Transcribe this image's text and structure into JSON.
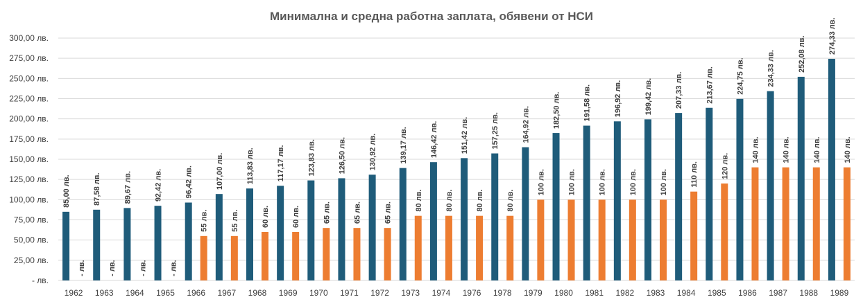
{
  "chart_data": {
    "type": "bar",
    "title": "Минимална и средна работна заплата, обявени от НСИ",
    "xlabel": "",
    "ylabel": "",
    "ylim": [
      0,
      300
    ],
    "y_ticks": [
      0,
      25,
      50,
      75,
      100,
      125,
      150,
      175,
      200,
      225,
      250,
      275,
      300
    ],
    "y_tick_labels": [
      "-  лв.",
      "25,00 лв.",
      "50,00 лв.",
      "75,00 лв.",
      "100,00 лв.",
      "125,00 лв.",
      "150,00 лв.",
      "175,00 лв.",
      "200,00 лв.",
      "225,00 лв.",
      "250,00 лв.",
      "275,00 лв.",
      "300,00 лв."
    ],
    "grid": true,
    "legend": "none",
    "categories": [
      "1962",
      "1963",
      "1964",
      "1965",
      "1966",
      "1967",
      "1968",
      "1969",
      "1970",
      "1971",
      "1972",
      "1973",
      "1974",
      "1976",
      "1978",
      "1979",
      "1980",
      "1981",
      "1982",
      "1983",
      "1984",
      "1985",
      "1986",
      "1987",
      "1988",
      "1989"
    ],
    "series": [
      {
        "color": "#1f5c7a",
        "values": [
          85.0,
          87.58,
          89.67,
          92.42,
          96.42,
          107.0,
          113.83,
          117.17,
          123.83,
          126.5,
          130.92,
          139.17,
          146.42,
          151.42,
          157.25,
          164.92,
          182.5,
          191.58,
          196.92,
          199.42,
          207.33,
          213.67,
          224.75,
          234.33,
          252.08,
          274.33
        ],
        "labels": [
          "85,00 лв.",
          "87,58 лв.",
          "89,67 лв.",
          "92,42 лв.",
          "96,42 лв.",
          "107,00 лв.",
          "113,83 лв.",
          "117,17 лв.",
          "123,83 лв.",
          "126,50 лв.",
          "130,92 лв.",
          "139,17 лв.",
          "146,42 лв.",
          "151,42 лв.",
          "157,25 лв.",
          "164,92 лв.",
          "182,50 лв.",
          "191,58 лв.",
          "196,92 лв.",
          "199,42 лв.",
          "207,33 лв.",
          "213,67 лв.",
          "224,75 лв.",
          "234,33 лв.",
          "252,08 лв.",
          "274,33 лв."
        ]
      },
      {
        "color": "#ed7d31",
        "values": [
          0,
          0,
          0,
          0,
          55,
          55,
          60,
          60,
          65,
          65,
          65,
          80,
          80,
          80,
          80,
          100,
          100,
          100,
          100,
          100,
          110,
          120,
          140,
          140,
          140,
          140
        ],
        "labels": [
          "- лв.",
          "- лв.",
          "- лв.",
          "- лв.",
          "55 лв.",
          "55 лв.",
          "60 лв.",
          "60 лв.",
          "65 лв.",
          "65 лв.",
          "65 лв.",
          "80 лв.",
          "80 лв.",
          "80 лв.",
          "80 лв.",
          "100 лв.",
          "100 лв.",
          "100 лв.",
          "100 лв.",
          "100 лв.",
          "110 лв.",
          "120 лв.",
          "140 лв.",
          "140 лв.",
          "140 лв.",
          "140 лв."
        ]
      }
    ]
  }
}
